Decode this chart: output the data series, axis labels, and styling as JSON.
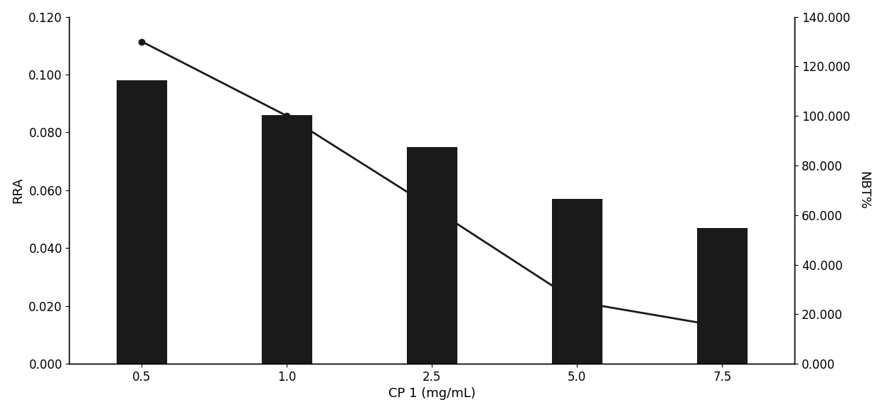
{
  "categories": [
    "0.5",
    "1.0",
    "2.5",
    "5.0",
    "7.5"
  ],
  "bar_values": [
    0.098,
    0.086,
    0.075,
    0.057,
    0.047
  ],
  "line_values": [
    130.0,
    100.0,
    63.0,
    25.0,
    15.0
  ],
  "bar_color": "#1a1a1a",
  "line_color": "#1a1a1a",
  "xlabel": "CP 1 (mg/mL)",
  "ylabel_left": "RRA",
  "ylabel_right": "NBT%",
  "ylim_left": [
    0.0,
    0.12
  ],
  "ylim_right": [
    0.0,
    140.0
  ],
  "yticks_left": [
    0.0,
    0.02,
    0.04,
    0.06,
    0.08,
    0.1,
    0.12
  ],
  "yticks_right": [
    0.0,
    20.0,
    40.0,
    60.0,
    80.0,
    100.0,
    120.0,
    140.0
  ],
  "background_color": "#ffffff",
  "bar_width": 0.35,
  "marker": "o",
  "marker_size": 6,
  "line_width": 2.0,
  "axis_label_fontsize": 13,
  "tick_fontsize": 12
}
